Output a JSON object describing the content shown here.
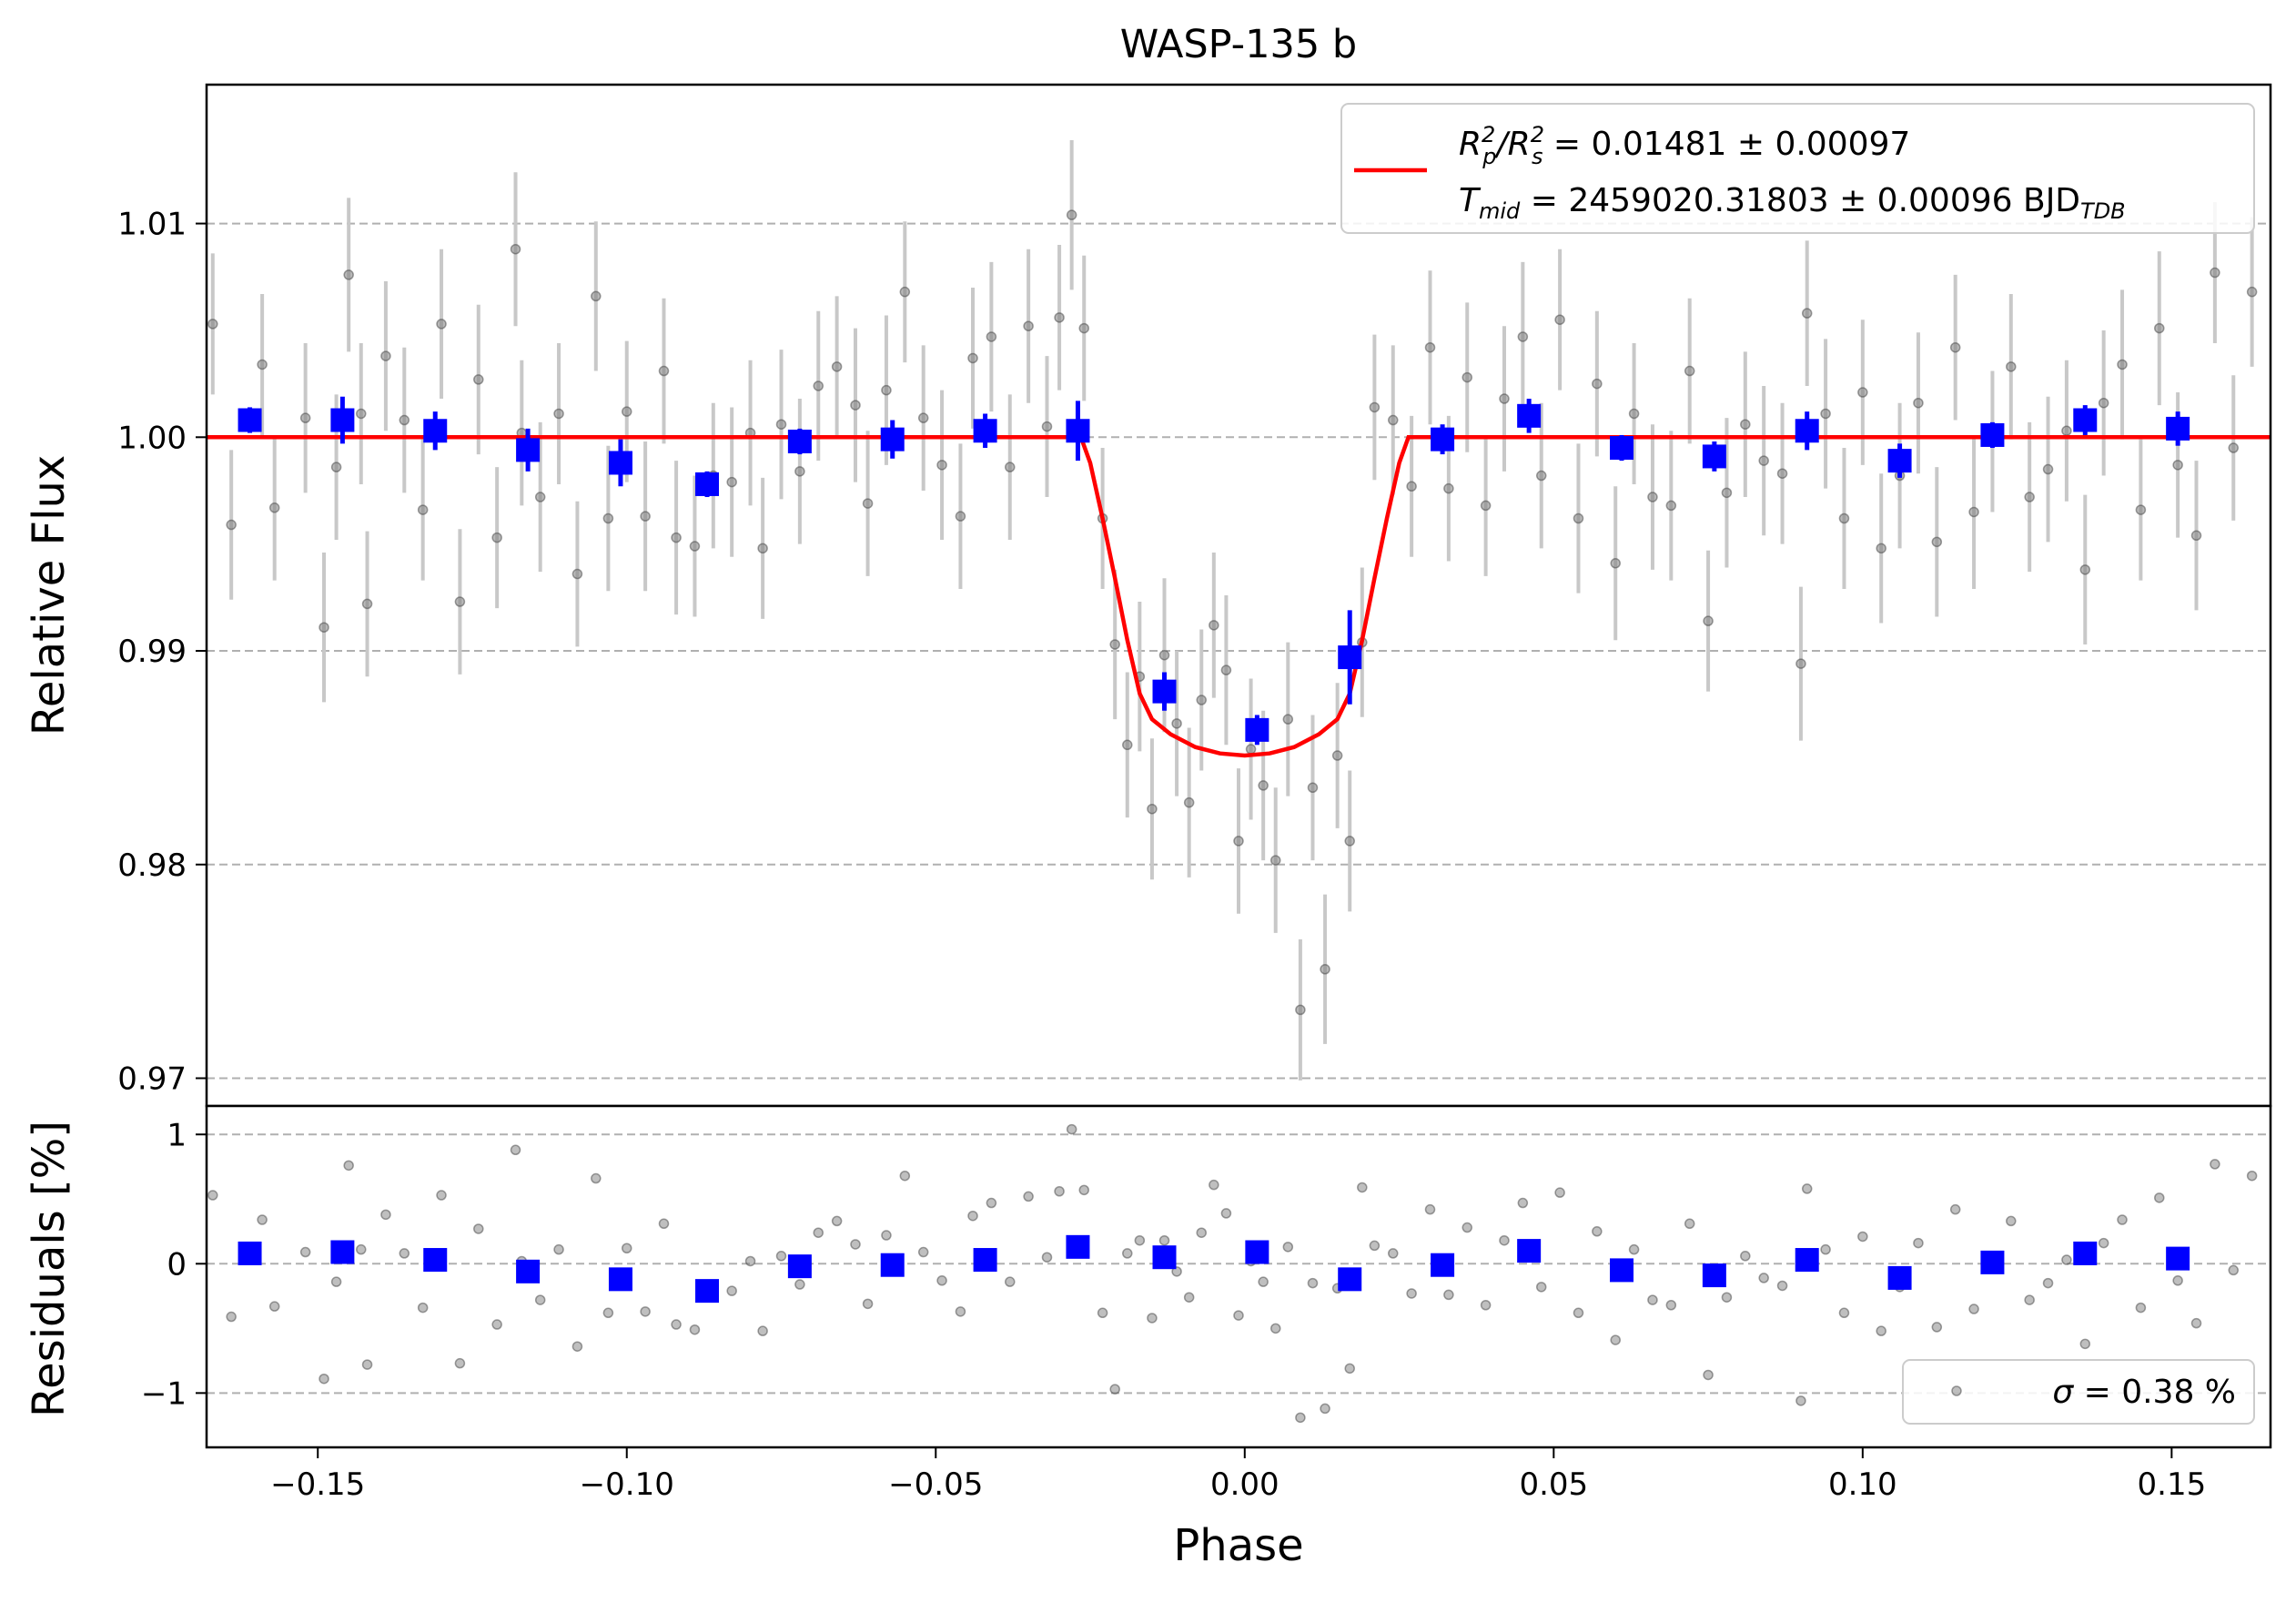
{
  "chart_data": [
    {
      "type": "scatter",
      "panel": "transit",
      "title": "WASP-135 b",
      "xlabel": "",
      "ylabel": "Relative Flux",
      "xlim": [
        -0.168,
        0.166
      ],
      "ylim": [
        0.9687,
        1.0165
      ],
      "x_ticks": [
        -0.15,
        -0.1,
        -0.05,
        0.0,
        0.05,
        0.1,
        0.15
      ],
      "y_ticks": [
        0.97,
        0.98,
        0.99,
        1.0,
        1.01
      ],
      "y_tick_labels": [
        "0.97",
        "0.98",
        "0.99",
        "1.00",
        "1.01"
      ],
      "grid": "horizontal dashed",
      "legend": {
        "placement": "top-right",
        "entry_line1_math": "R_p^2/R_s^2",
        "entry_line1_text": " = 0.01481 ± 0.00097",
        "entry_line2_math": "T_mid",
        "entry_line2_text": " = 2459020.31803 ± 0.00096 BJD",
        "entry_line2_subscript": "TDB"
      },
      "series": [
        {
          "role": "model",
          "color": "#ff0000",
          "style": "line",
          "x": [
            -0.168,
            -0.0265,
            -0.025,
            -0.023,
            -0.021,
            -0.019,
            -0.017,
            -0.015,
            -0.012,
            -0.008,
            -0.004,
            0.0,
            0.004,
            0.008,
            0.012,
            0.015,
            0.017,
            0.019,
            0.021,
            0.023,
            0.025,
            0.0265,
            0.166
          ],
          "y": [
            1.0,
            1.0,
            0.9988,
            0.9962,
            0.9934,
            0.9905,
            0.988,
            0.9868,
            0.9861,
            0.9855,
            0.9852,
            0.9851,
            0.9852,
            0.9855,
            0.9861,
            0.9868,
            0.988,
            0.9905,
            0.9934,
            0.9962,
            0.9988,
            1.0,
            1.0
          ]
        },
        {
          "role": "binned",
          "color": "#0000ff",
          "style": "square-marker",
          "x": [
            -0.161,
            -0.146,
            -0.131,
            -0.116,
            -0.101,
            -0.087,
            -0.072,
            -0.057,
            -0.042,
            -0.027,
            -0.013,
            0.002,
            0.017,
            0.032,
            0.046,
            0.061,
            0.076,
            0.091,
            0.106,
            0.121,
            0.136,
            0.151
          ],
          "y": [
            1.0008,
            1.0008,
            1.0003,
            0.9994,
            0.9988,
            0.9978,
            0.9998,
            0.9999,
            1.0003,
            1.0003,
            0.9881,
            0.9863,
            0.9897,
            0.9999,
            1.001,
            0.9995,
            0.9991,
            1.0003,
            0.9989,
            1.0001,
            1.0008,
            1.0004
          ],
          "err": [
            0.0006,
            0.0011,
            0.0009,
            0.001,
            0.0011,
            0.0006,
            0.0006,
            0.0009,
            0.0008,
            0.0014,
            0.0009,
            0.0007,
            0.0022,
            0.0007,
            0.0008,
            0.0006,
            0.0007,
            0.0009,
            0.0008,
            0.0006,
            0.0007,
            0.0008
          ]
        },
        {
          "role": "raw",
          "color": "#808080",
          "style": "point-with-errorbar",
          "x": [
            -0.167,
            -0.164,
            -0.159,
            -0.157,
            -0.152,
            -0.149,
            -0.147,
            -0.145,
            -0.143,
            -0.142,
            -0.139,
            -0.136,
            -0.133,
            -0.13,
            -0.127,
            -0.124,
            -0.121,
            -0.118,
            -0.117,
            -0.114,
            -0.111,
            -0.108,
            -0.105,
            -0.103,
            -0.1,
            -0.097,
            -0.094,
            -0.092,
            -0.089,
            -0.086,
            -0.083,
            -0.08,
            -0.078,
            -0.075,
            -0.072,
            -0.069,
            -0.066,
            -0.063,
            -0.061,
            -0.058,
            -0.055,
            -0.052,
            -0.049,
            -0.046,
            -0.044,
            -0.041,
            -0.038,
            -0.035,
            -0.032,
            -0.03,
            -0.028,
            -0.026,
            -0.023,
            -0.021,
            -0.019,
            -0.017,
            -0.015,
            -0.013,
            -0.011,
            -0.009,
            -0.007,
            -0.005,
            -0.003,
            -0.001,
            0.001,
            0.003,
            0.005,
            0.007,
            0.009,
            0.011,
            0.013,
            0.015,
            0.017,
            0.019,
            0.021,
            0.024,
            0.027,
            0.03,
            0.033,
            0.036,
            0.039,
            0.042,
            0.045,
            0.048,
            0.051,
            0.054,
            0.057,
            0.06,
            0.063,
            0.066,
            0.069,
            0.072,
            0.075,
            0.078,
            0.081,
            0.084,
            0.087,
            0.09,
            0.091,
            0.094,
            0.097,
            0.1,
            0.103,
            0.106,
            0.109,
            0.112,
            0.115,
            0.118,
            0.121,
            0.124,
            0.127,
            0.13,
            0.133,
            0.136,
            0.139,
            0.142,
            0.145,
            0.148,
            0.151,
            0.154,
            0.157,
            0.16,
            0.163
          ],
          "y": [
            1.0053,
            0.9959,
            1.0034,
            0.9967,
            1.0009,
            0.9911,
            0.9986,
            1.0076,
            1.0011,
            0.9922,
            1.0038,
            1.0008,
            0.9966,
            1.0053,
            0.9923,
            1.0027,
            0.9953,
            1.0088,
            1.0002,
            0.9972,
            1.0011,
            0.9936,
            1.0066,
            0.9962,
            1.0012,
            0.9963,
            1.0031,
            0.9953,
            0.9949,
            0.9982,
            0.9979,
            1.0002,
            0.9948,
            1.0006,
            0.9984,
            1.0024,
            1.0033,
            1.0015,
            0.9969,
            1.0022,
            1.0068,
            1.0009,
            0.9987,
            0.9963,
            1.0037,
            1.0047,
            0.9986,
            1.0052,
            1.0005,
            1.0056,
            1.0104,
            1.0051,
            0.9962,
            0.9903,
            0.9856,
            0.9888,
            0.9826,
            0.9898,
            0.9866,
            0.9829,
            0.9877,
            0.9912,
            0.9891,
            0.9811,
            0.9854,
            0.9837,
            0.9802,
            0.9868,
            0.9732,
            0.9836,
            0.9751,
            0.9851,
            0.9811,
            0.9904,
            1.0014,
            1.0008,
            0.9977,
            1.0042,
            0.9976,
            1.0028,
            0.9968,
            1.0018,
            1.0047,
            0.9982,
            1.0055,
            0.9962,
            1.0025,
            0.9941,
            1.0011,
            0.9972,
            0.9968,
            1.0031,
            0.9914,
            0.9974,
            1.0006,
            0.9989,
            0.9983,
            0.9894,
            1.0058,
            1.0011,
            0.9962,
            1.0021,
            0.9948,
            0.9982,
            1.0016,
            0.9951,
            1.0042,
            0.9965,
            0.9998,
            1.0033,
            0.9972,
            0.9985,
            1.0003,
            0.9938,
            1.0016,
            1.0034,
            0.9966,
            1.0051,
            0.9987,
            0.9954,
            1.0077,
            0.9995,
            1.0068
          ],
          "err": [
            0.0033,
            0.0035,
            0.0033,
            0.0034,
            0.0035,
            0.0035,
            0.0034,
            0.0036,
            0.0033,
            0.0034,
            0.0035,
            0.0034,
            0.0033,
            0.0035,
            0.0034,
            0.0035,
            0.0033,
            0.0036,
            0.0034,
            0.0035,
            0.0033,
            0.0034,
            0.0035,
            0.0034,
            0.0033,
            0.0035,
            0.0034,
            0.0036,
            0.0033,
            0.0034,
            0.0035,
            0.0034,
            0.0033,
            0.0035,
            0.0034,
            0.0035,
            0.0033,
            0.0036,
            0.0034,
            0.0035,
            0.0033,
            0.0034,
            0.0035,
            0.0034,
            0.0033,
            0.0035,
            0.0034,
            0.0036,
            0.0033,
            0.0034,
            0.0035,
            0.0034,
            0.0033,
            0.0035,
            0.0034,
            0.0035,
            0.0033,
            0.0036,
            0.0034,
            0.0035,
            0.0033,
            0.0034,
            0.0035,
            0.0034,
            0.0033,
            0.0035,
            0.0034,
            0.0036,
            0.0033,
            0.0034,
            0.0035,
            0.0034,
            0.0033,
            0.0035,
            0.0034,
            0.0035,
            0.0033,
            0.0036,
            0.0034,
            0.0035,
            0.0033,
            0.0034,
            0.0035,
            0.0034,
            0.0033,
            0.0035,
            0.0034,
            0.0036,
            0.0033,
            0.0034,
            0.0035,
            0.0034,
            0.0033,
            0.0035,
            0.0034,
            0.0035,
            0.0033,
            0.0036,
            0.0034,
            0.0035,
            0.0033,
            0.0034,
            0.0035,
            0.0034,
            0.0033,
            0.0035,
            0.0034,
            0.0036,
            0.0033,
            0.0034,
            0.0035,
            0.0034,
            0.0033,
            0.0035,
            0.0034,
            0.0035,
            0.0033,
            0.0036,
            0.0034,
            0.0035,
            0.0033,
            0.0034,
            0.0035
          ]
        }
      ]
    },
    {
      "type": "scatter",
      "panel": "residuals",
      "title": "",
      "xlabel": "Phase",
      "ylabel": "Residuals [%]",
      "xlim": [
        -0.168,
        0.166
      ],
      "ylim": [
        -1.42,
        1.22
      ],
      "x_ticks": [
        -0.15,
        -0.1,
        -0.05,
        0.0,
        0.05,
        0.1,
        0.15
      ],
      "x_tick_labels": [
        "−0.15",
        "−0.10",
        "−0.05",
        "0.00",
        "0.05",
        "0.10",
        "0.15"
      ],
      "y_ticks": [
        -1,
        0,
        1
      ],
      "y_tick_labels": [
        "−1",
        "0",
        "1"
      ],
      "grid": "horizontal dashed",
      "legend": {
        "placement": "bottom-right",
        "entry_math": "σ",
        "entry_text": " = 0.38 %"
      },
      "series": [
        {
          "role": "binned",
          "color": "#0000ff",
          "style": "square-marker",
          "x": [
            -0.161,
            -0.146,
            -0.131,
            -0.116,
            -0.101,
            -0.087,
            -0.072,
            -0.057,
            -0.042,
            -0.027,
            -0.013,
            0.002,
            0.017,
            0.032,
            0.046,
            0.061,
            0.076,
            0.091,
            0.106,
            0.121,
            0.136,
            0.151
          ],
          "y": [
            0.08,
            0.09,
            0.03,
            -0.06,
            -0.12,
            -0.21,
            -0.02,
            -0.01,
            0.03,
            0.13,
            0.05,
            0.09,
            -0.12,
            -0.01,
            0.1,
            -0.05,
            -0.09,
            0.03,
            -0.11,
            0.01,
            0.08,
            0.04
          ]
        },
        {
          "role": "raw",
          "color": "#808080",
          "style": "point",
          "x": [
            -0.167,
            -0.164,
            -0.159,
            -0.157,
            -0.152,
            -0.149,
            -0.147,
            -0.145,
            -0.143,
            -0.142,
            -0.139,
            -0.136,
            -0.133,
            -0.13,
            -0.127,
            -0.124,
            -0.121,
            -0.118,
            -0.117,
            -0.114,
            -0.111,
            -0.108,
            -0.105,
            -0.103,
            -0.1,
            -0.097,
            -0.094,
            -0.092,
            -0.089,
            -0.086,
            -0.083,
            -0.08,
            -0.078,
            -0.075,
            -0.072,
            -0.069,
            -0.066,
            -0.063,
            -0.061,
            -0.058,
            -0.055,
            -0.052,
            -0.049,
            -0.046,
            -0.044,
            -0.041,
            -0.038,
            -0.035,
            -0.032,
            -0.03,
            -0.028,
            -0.026,
            -0.023,
            -0.021,
            -0.019,
            -0.017,
            -0.015,
            -0.013,
            -0.011,
            -0.009,
            -0.007,
            -0.005,
            -0.003,
            -0.001,
            0.001,
            0.003,
            0.005,
            0.007,
            0.009,
            0.011,
            0.013,
            0.015,
            0.017,
            0.019,
            0.021,
            0.024,
            0.027,
            0.03,
            0.033,
            0.036,
            0.039,
            0.042,
            0.045,
            0.048,
            0.051,
            0.054,
            0.057,
            0.06,
            0.063,
            0.066,
            0.069,
            0.072,
            0.075,
            0.078,
            0.081,
            0.084,
            0.087,
            0.09,
            0.091,
            0.094,
            0.097,
            0.1,
            0.103,
            0.106,
            0.109,
            0.112,
            0.115,
            0.118,
            0.121,
            0.124,
            0.127,
            0.13,
            0.133,
            0.136,
            0.139,
            0.142,
            0.145,
            0.148,
            0.151,
            0.154,
            0.157,
            0.16,
            0.163
          ],
          "y": [
            0.53,
            -0.41,
            0.34,
            -0.33,
            0.09,
            -0.89,
            -0.14,
            0.76,
            0.11,
            -0.78,
            0.38,
            0.08,
            -0.34,
            0.53,
            -0.77,
            0.27,
            -0.47,
            0.88,
            0.02,
            -0.28,
            0.11,
            -0.64,
            0.66,
            -0.38,
            0.12,
            -0.37,
            0.31,
            -0.47,
            -0.51,
            -0.18,
            -0.21,
            0.02,
            -0.52,
            0.06,
            -0.16,
            0.24,
            0.33,
            0.15,
            -0.31,
            0.22,
            0.68,
            0.09,
            -0.13,
            -0.37,
            0.37,
            0.47,
            -0.14,
            0.52,
            0.05,
            0.56,
            1.04,
            0.57,
            -0.38,
            -0.97,
            0.08,
            0.18,
            -0.42,
            0.18,
            -0.06,
            -0.26,
            0.24,
            0.61,
            0.39,
            -0.4,
            0.02,
            -0.14,
            -0.5,
            0.13,
            -1.19,
            -0.15,
            -1.12,
            -0.19,
            -0.81,
            0.59,
            0.14,
            0.08,
            -0.23,
            0.42,
            -0.24,
            0.28,
            -0.32,
            0.18,
            0.47,
            -0.18,
            0.55,
            -0.38,
            0.25,
            -0.59,
            0.11,
            -0.28,
            -0.32,
            0.31,
            -0.86,
            -0.26,
            0.06,
            -0.11,
            -0.17,
            -1.06,
            0.58,
            0.11,
            -0.38,
            0.21,
            -0.52,
            -0.18,
            0.16,
            -0.49,
            0.42,
            -0.35,
            -0.02,
            0.33,
            -0.28,
            -0.15,
            0.03,
            -0.62,
            0.16,
            0.34,
            -0.34,
            0.51,
            -0.13,
            -0.46,
            0.77,
            -0.05,
            0.68
          ]
        }
      ]
    }
  ]
}
